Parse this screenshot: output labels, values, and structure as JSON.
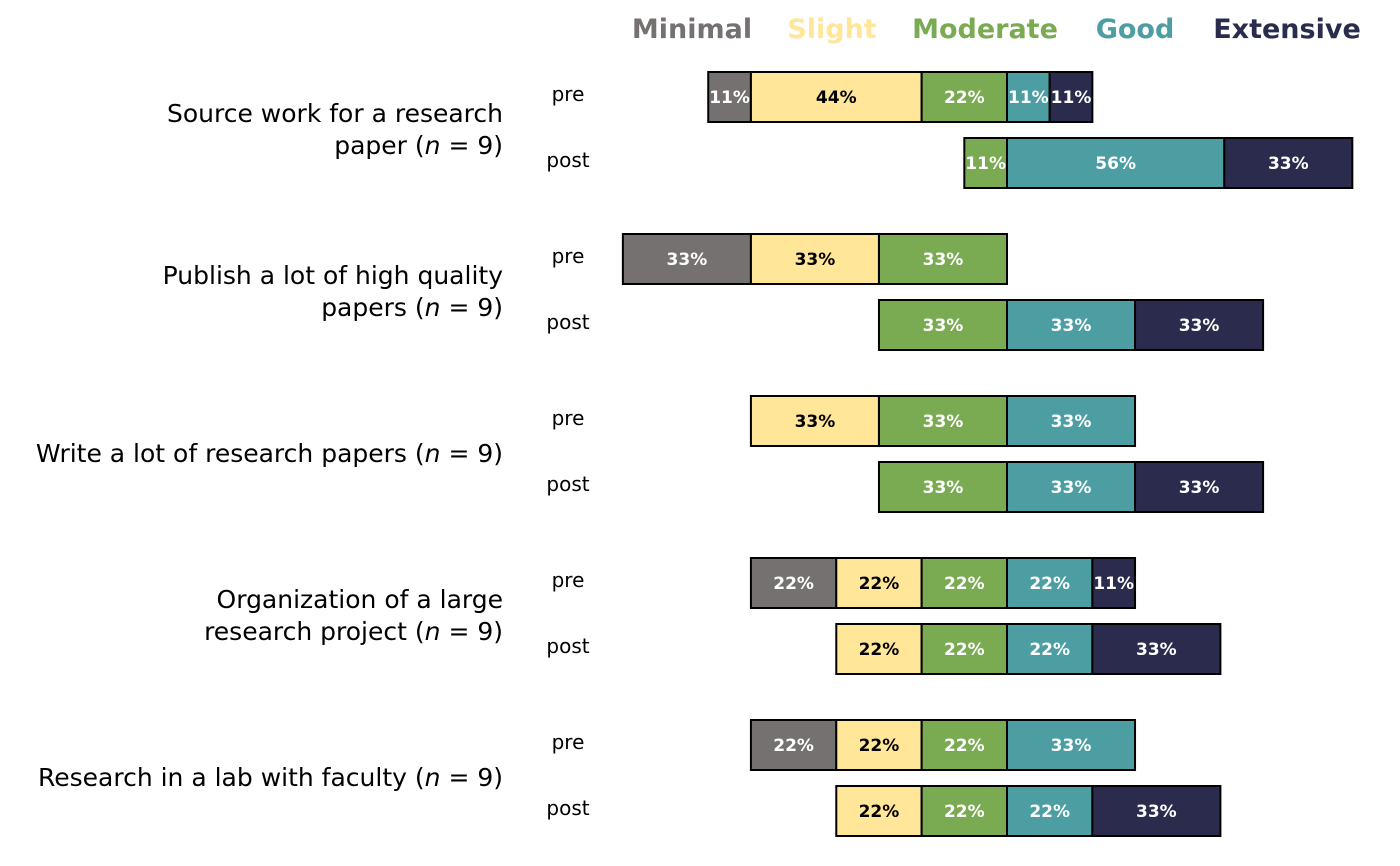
{
  "chart_data": {
    "type": "bar",
    "orientation": "horizontal",
    "stacked": true,
    "layout": "diverging",
    "legend": {
      "placement": "top",
      "entries": [
        {
          "name": "Minimal",
          "color": "#767171"
        },
        {
          "name": "Slight",
          "color": "#FFE699"
        },
        {
          "name": "Moderate",
          "color": "#7AAB53"
        },
        {
          "name": "Good",
          "color": "#4C9EA3"
        },
        {
          "name": "Extensive",
          "color": "#2B2B4D"
        }
      ]
    },
    "label_colors": {
      "Minimal": "#ffffff",
      "Slight": "#000000",
      "Moderate": "#ffffff",
      "Good": "#ffffff",
      "Extensive": "#ffffff"
    },
    "items": [
      {
        "label_lines": [
          "Source work for a research",
          "paper (n = 9)"
        ],
        "rows": [
          {
            "phase": "pre",
            "values": [
              11,
              44,
              22,
              11,
              11
            ],
            "labels": [
              "11%",
              "44%",
              "22%",
              "11%",
              "11%"
            ]
          },
          {
            "phase": "post",
            "values": [
              0,
              0,
              11,
              56,
              33
            ],
            "labels": [
              "",
              "",
              "11%",
              "56%",
              "33%"
            ]
          }
        ]
      },
      {
        "label_lines": [
          "Publish a lot of high quality",
          "papers (n = 9)"
        ],
        "rows": [
          {
            "phase": "pre",
            "values": [
              33,
              33,
              33,
              0,
              0
            ],
            "labels": [
              "33%",
              "33%",
              "33%",
              "",
              ""
            ]
          },
          {
            "phase": "post",
            "values": [
              0,
              0,
              33,
              33,
              33
            ],
            "labels": [
              "",
              "",
              "33%",
              "33%",
              "33%"
            ]
          }
        ]
      },
      {
        "label_lines": [
          "Write a lot of research papers (n = 9)"
        ],
        "rows": [
          {
            "phase": "pre",
            "values": [
              0,
              33,
              33,
              33,
              0
            ],
            "labels": [
              "",
              "33%",
              "33%",
              "33%",
              ""
            ]
          },
          {
            "phase": "post",
            "values": [
              0,
              0,
              33,
              33,
              33
            ],
            "labels": [
              "",
              "",
              "33%",
              "33%",
              "33%"
            ]
          }
        ]
      },
      {
        "label_lines": [
          "Organization of a large",
          "research project (n = 9)"
        ],
        "rows": [
          {
            "phase": "pre",
            "values": [
              22,
              22,
              22,
              22,
              11
            ],
            "labels": [
              "22%",
              "22%",
              "22%",
              "22%",
              "11%"
            ]
          },
          {
            "phase": "post",
            "values": [
              0,
              22,
              22,
              22,
              33
            ],
            "labels": [
              "",
              "22%",
              "22%",
              "22%",
              "33%"
            ]
          }
        ]
      },
      {
        "label_lines": [
          "Research in a lab with faculty (n = 9)"
        ],
        "rows": [
          {
            "phase": "pre",
            "values": [
              22,
              22,
              22,
              33,
              0
            ],
            "labels": [
              "22%",
              "22%",
              "22%",
              "33%",
              ""
            ]
          },
          {
            "phase": "post",
            "values": [
              0,
              22,
              22,
              22,
              33
            ],
            "labels": [
              "",
              "22%",
              "22%",
              "22%",
              "33%"
            ]
          }
        ]
      }
    ]
  }
}
